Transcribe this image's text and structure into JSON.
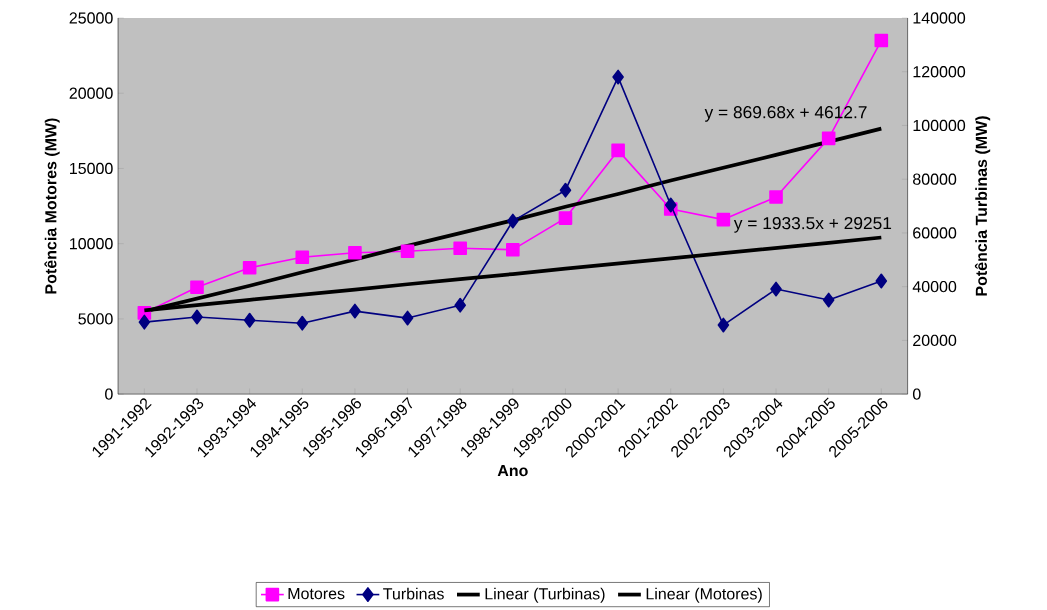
{
  "chart_data": {
    "type": "line",
    "xlabel": "Ano",
    "ylabel": "Potência Motores (MW)",
    "y2label": "Potência Turbinas (MW)",
    "categories": [
      "1991-1992",
      "1992-1993",
      "1993-1994",
      "1994-1995",
      "1995-1996",
      "1996-1997",
      "1997-1998",
      "1998-1999",
      "1999-2000",
      "2000-2001",
      "2001-2002",
      "2002-2003",
      "2003-2004",
      "2004-2005",
      "2005-2006"
    ],
    "series": [
      {
        "name": "Motores",
        "color": "#ff00ff",
        "marker": "square",
        "values": [
          5400,
          7100,
          8400,
          9100,
          9400,
          9500,
          9700,
          9600,
          11700,
          16200,
          12300,
          11600,
          13100,
          17000,
          23500
        ]
      },
      {
        "name": "Turbinas",
        "color": "#000080",
        "marker": "diamond",
        "axis": "y2",
        "values": [
          26800,
          28700,
          27500,
          26400,
          30900,
          28300,
          33100,
          64400,
          75900,
          118000,
          70400,
          25700,
          39100,
          35000,
          42100
        ]
      },
      {
        "name": "Linear (Turbinas)",
        "color": "#000000",
        "marker": "none",
        "axis": "y2",
        "values": [
          31200,
          33100,
          35100,
          37000,
          38900,
          40900,
          42800,
          44700,
          46700,
          48600,
          50500,
          52500,
          54400,
          56300,
          58300
        ]
      },
      {
        "name": "Linear (Motores)",
        "color": "#000000",
        "marker": "none",
        "values": [
          5500,
          6350,
          7200,
          8100,
          8950,
          9850,
          10700,
          11550,
          12450,
          13300,
          14200,
          15050,
          15900,
          null,
          17650
        ]
      }
    ],
    "ylim": [
      0,
      25000
    ],
    "yticks": [
      0,
      5000,
      10000,
      15000,
      20000,
      25000
    ],
    "y2lim": [
      0,
      140000
    ],
    "y2ticks": [
      0,
      20000,
      40000,
      60000,
      80000,
      100000,
      120000,
      140000
    ],
    "annotations": [
      "y = 869.68x + 4612.7",
      "y = 1933.5x + 29251"
    ],
    "legend": "bottom",
    "grid": false
  }
}
